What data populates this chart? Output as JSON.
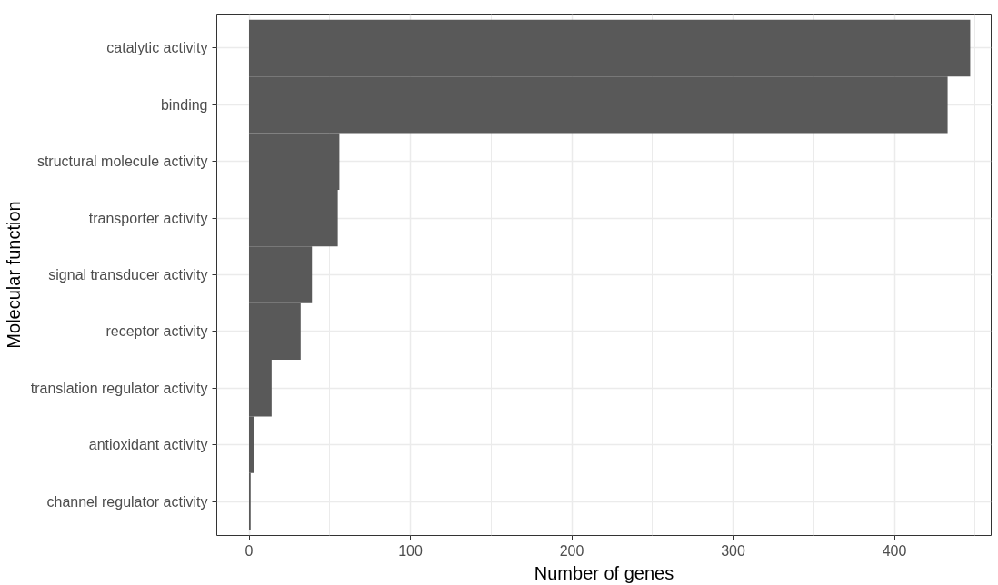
{
  "chart_data": {
    "type": "bar",
    "orientation": "horizontal",
    "xlabel": "Number of genes",
    "ylabel": "Molecular function",
    "categories": [
      "catalytic activity",
      "binding",
      "structural molecule activity",
      "transporter activity",
      "signal transducer activity",
      "receptor activity",
      "translation regulator activity",
      "antioxidant activity",
      "channel regulator activity"
    ],
    "values": [
      447,
      433,
      56,
      55,
      39,
      32,
      14,
      3,
      1
    ],
    "color": "#595959",
    "xlim": [
      -20,
      460
    ],
    "xticks": [
      0,
      100,
      200,
      300,
      400
    ],
    "grid": true
  }
}
